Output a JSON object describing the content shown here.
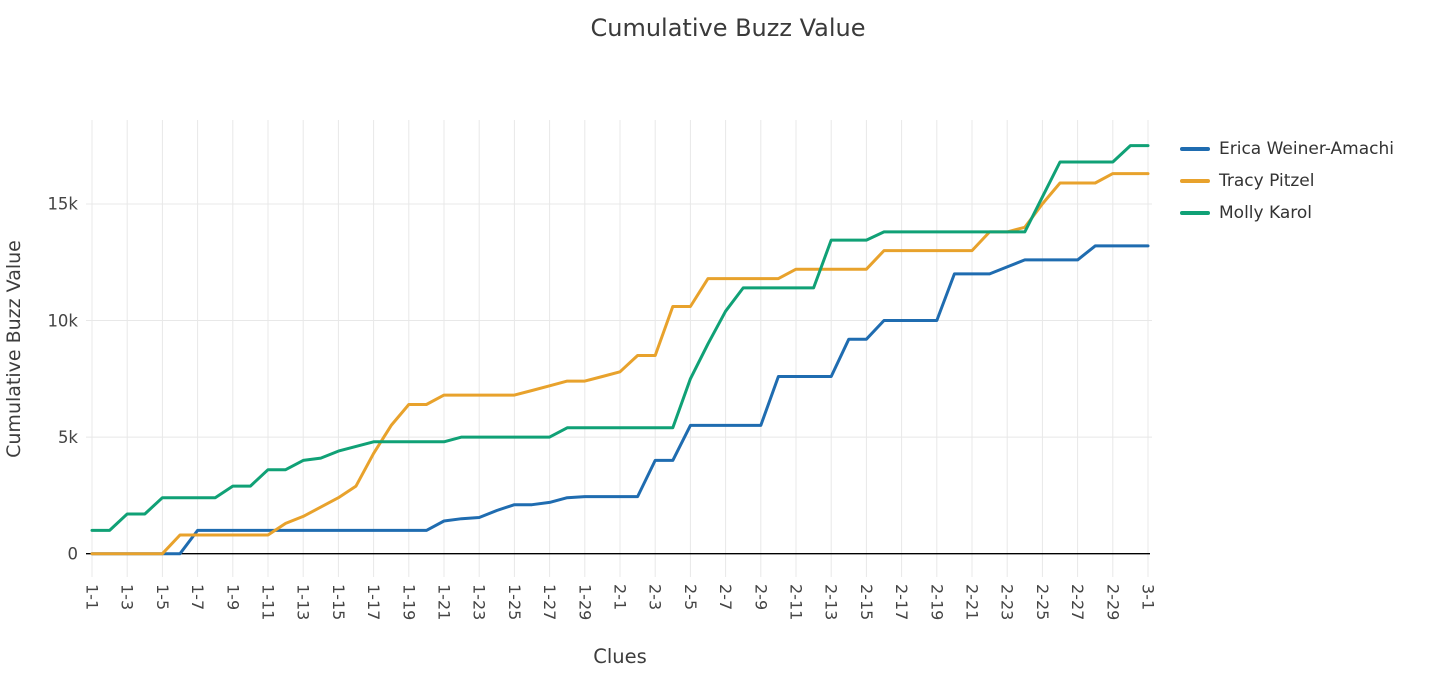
{
  "title": "Cumulative Buzz Value",
  "chart_data": {
    "type": "line",
    "title": "Cumulative Buzz Value",
    "xlabel": "Clues",
    "ylabel": "Cumulative Buzz Value",
    "ylim": [
      -1000,
      18600
    ],
    "grid": true,
    "legend_position": "right",
    "y_ticks": {
      "values": [
        0,
        5000,
        10000,
        15000
      ],
      "labels": [
        "0",
        "5k",
        "10k",
        "15k"
      ]
    },
    "x_ticks": {
      "indices": [
        0,
        2,
        4,
        6,
        8,
        10,
        12,
        14,
        16,
        18,
        20,
        22,
        24,
        26,
        28,
        30,
        32,
        34,
        36,
        38,
        40,
        42,
        44,
        46,
        48,
        50,
        52,
        54,
        56,
        58,
        60
      ],
      "labels": [
        "1-1",
        "1-3",
        "1-5",
        "1-7",
        "1-9",
        "1-11",
        "1-13",
        "1-15",
        "1-17",
        "1-19",
        "1-21",
        "1-23",
        "1-25",
        "1-27",
        "1-29",
        "2-1",
        "2-3",
        "2-5",
        "2-7",
        "2-9",
        "2-11",
        "2-13",
        "2-15",
        "2-17",
        "2-19",
        "2-21",
        "2-23",
        "2-25",
        "2-27",
        "2-29",
        "3-1"
      ]
    },
    "series": [
      {
        "name": "Erica Weiner-Amachi",
        "color": "#1f6cb0",
        "values": [
          0,
          0,
          0,
          0,
          0,
          0,
          1000,
          1000,
          1000,
          1000,
          1000,
          1000,
          1000,
          1000,
          1000,
          1000,
          1000,
          1000,
          1000,
          1000,
          1400,
          1500,
          1550,
          1850,
          2100,
          2100,
          2200,
          2400,
          2450,
          2450,
          2450,
          2450,
          4000,
          4000,
          5500,
          5500,
          5500,
          5500,
          5500,
          7600,
          7600,
          7600,
          7600,
          9200,
          9200,
          10000,
          10000,
          10000,
          10000,
          12000,
          12000,
          12000,
          12300,
          12600,
          12600,
          12600,
          12600,
          13200,
          13200,
          13200,
          13200
        ]
      },
      {
        "name": "Tracy Pitzel",
        "color": "#e8a22c",
        "values": [
          0,
          0,
          0,
          0,
          0,
          800,
          800,
          800,
          800,
          800,
          800,
          1300,
          1600,
          2000,
          2400,
          2900,
          4300,
          5500,
          6400,
          6400,
          6800,
          6800,
          6800,
          6800,
          6800,
          7000,
          7200,
          7400,
          7400,
          7600,
          7800,
          8500,
          8500,
          10600,
          10600,
          11800,
          11800,
          11800,
          11800,
          11800,
          12200,
          12200,
          12200,
          12200,
          12200,
          13000,
          13000,
          13000,
          13000,
          13000,
          13000,
          13800,
          13800,
          14000,
          15000,
          15900,
          15900,
          15900,
          16300,
          16300,
          16300
        ]
      },
      {
        "name": "Molly Karol",
        "color": "#10a176",
        "values": [
          1000,
          1000,
          1700,
          1700,
          2400,
          2400,
          2400,
          2400,
          2900,
          2900,
          3600,
          3600,
          4000,
          4100,
          4400,
          4600,
          4800,
          4800,
          4800,
          4800,
          4800,
          5000,
          5000,
          5000,
          5000,
          5000,
          5000,
          5400,
          5400,
          5400,
          5400,
          5400,
          5400,
          5400,
          7500,
          9000,
          10400,
          11400,
          11400,
          11400,
          11400,
          11400,
          13450,
          13450,
          13450,
          13800,
          13800,
          13800,
          13800,
          13800,
          13800,
          13800,
          13800,
          13800,
          15300,
          16800,
          16800,
          16800,
          16800,
          17500,
          17500
        ]
      }
    ]
  }
}
